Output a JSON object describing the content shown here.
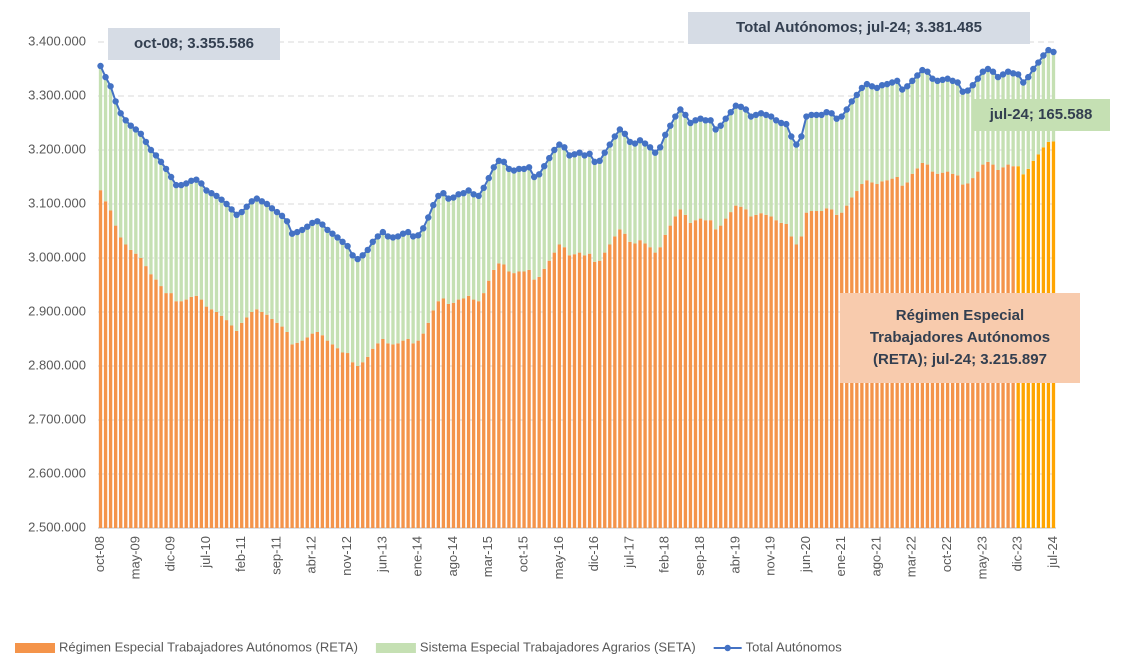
{
  "chart_data": {
    "type": "combo",
    "categories": [
      "oct-08",
      null,
      null,
      null,
      null,
      null,
      null,
      "may-09",
      null,
      null,
      null,
      null,
      null,
      null,
      "dic-09",
      null,
      null,
      null,
      null,
      null,
      null,
      "jul-10",
      null,
      null,
      null,
      null,
      null,
      null,
      "feb-11",
      null,
      null,
      null,
      null,
      null,
      null,
      "sep-11",
      null,
      null,
      null,
      null,
      null,
      null,
      "abr-12",
      null,
      null,
      null,
      null,
      null,
      null,
      "nov-12",
      null,
      null,
      null,
      null,
      null,
      null,
      "jun-13",
      null,
      null,
      null,
      null,
      null,
      null,
      "ene-14",
      null,
      null,
      null,
      null,
      null,
      null,
      "ago-14",
      null,
      null,
      null,
      null,
      null,
      null,
      "mar-15",
      null,
      null,
      null,
      null,
      null,
      null,
      "oct-15",
      null,
      null,
      null,
      null,
      null,
      null,
      "may-16",
      null,
      null,
      null,
      null,
      null,
      null,
      "dic-16",
      null,
      null,
      null,
      null,
      null,
      null,
      "jul-17",
      null,
      null,
      null,
      null,
      null,
      null,
      "feb-18",
      null,
      null,
      null,
      null,
      null,
      null,
      "sep-18",
      null,
      null,
      null,
      null,
      null,
      null,
      "abr-19",
      null,
      null,
      null,
      null,
      null,
      null,
      "nov-19",
      null,
      null,
      null,
      null,
      null,
      null,
      "jun-20",
      null,
      null,
      null,
      null,
      null,
      null,
      "ene-21",
      null,
      null,
      null,
      null,
      null,
      null,
      "ago-21",
      null,
      null,
      null,
      null,
      null,
      null,
      "mar-22",
      null,
      null,
      null,
      null,
      null,
      null,
      "oct-22",
      null,
      null,
      null,
      null,
      null,
      null,
      "may-23",
      null,
      null,
      null,
      null,
      null,
      null,
      "dic-23",
      null,
      null,
      null,
      null,
      null,
      null,
      "jul-24"
    ],
    "highlight_from": "dic-23",
    "series": [
      {
        "name": "Régimen Especial Trabajadores Autónomos (RETA)",
        "type": "bar",
        "color": "#f4944a",
        "highlight_color": "#ffa500",
        "values": [
          3125586,
          3105000,
          3088000,
          3060000,
          3038000,
          3025000,
          3015000,
          3008000,
          3000000,
          2985000,
          2970000,
          2960000,
          2948000,
          2935000,
          2935000,
          2920000,
          2920000,
          2923000,
          2928000,
          2930000,
          2923000,
          2910000,
          2905000,
          2900000,
          2893000,
          2885000,
          2875000,
          2865000,
          2880000,
          2890000,
          2900000,
          2905000,
          2900000,
          2895000,
          2887000,
          2880000,
          2873000,
          2863000,
          2840000,
          2843000,
          2847000,
          2853000,
          2860000,
          2863000,
          2857000,
          2847000,
          2840000,
          2833000,
          2825000,
          2824000,
          2807000,
          2800000,
          2807000,
          2817000,
          2832000,
          2842000,
          2850000,
          2842000,
          2840000,
          2842000,
          2847000,
          2850000,
          2842000,
          2847000,
          2860000,
          2880000,
          2903000,
          2920000,
          2925000,
          2915000,
          2917000,
          2923000,
          2925000,
          2930000,
          2923000,
          2920000,
          2935000,
          2958000,
          2978000,
          2990000,
          2988000,
          2975000,
          2972000,
          2975000,
          2975000,
          2978000,
          2960000,
          2965000,
          2980000,
          2995000,
          3010000,
          3025000,
          3020000,
          3005000,
          3007000,
          3010000,
          3005000,
          3008000,
          2993000,
          2995000,
          3010000,
          3025000,
          3040000,
          3053000,
          3045000,
          3030000,
          3027000,
          3033000,
          3027000,
          3020000,
          3010000,
          3020000,
          3043000,
          3060000,
          3077000,
          3090000,
          3080000,
          3065000,
          3070000,
          3073000,
          3070000,
          3070000,
          3053000,
          3060000,
          3073000,
          3085000,
          3097000,
          3095000,
          3090000,
          3077000,
          3080000,
          3083000,
          3080000,
          3077000,
          3070000,
          3065000,
          3063000,
          3040000,
          3025000,
          3040000,
          3084000,
          3087000,
          3087000,
          3087000,
          3092000,
          3090000,
          3080000,
          3084000,
          3097000,
          3112000,
          3124000,
          3137000,
          3144000,
          3140000,
          3137000,
          3142000,
          3144000,
          3147000,
          3150000,
          3134000,
          3140000,
          3156000,
          3166000,
          3176000,
          3173000,
          3160000,
          3156000,
          3158000,
          3160000,
          3156000,
          3153000,
          3136000,
          3138000,
          3148000,
          3160000,
          3173000,
          3178000,
          3173000,
          3163000,
          3168000,
          3173000,
          3170000,
          3170000,
          3155000,
          3165000,
          3180000,
          3192000,
          3205000,
          3215000,
          3215897
        ],
        "value_labels": {
          "189": "Régimen Especial Trabajadores Autónomos (RETA); jul-24; 3.215.897"
        }
      },
      {
        "name": "Sistema Especial Trabajadores Agrarios (SETA)",
        "type": "bar",
        "color": "#c5e0b3",
        "values": [
          230000,
          230000,
          230000,
          230000,
          230000,
          230000,
          230000,
          230000,
          230000,
          230000,
          230000,
          230000,
          230000,
          230000,
          215000,
          215000,
          215000,
          215000,
          215000,
          215000,
          215000,
          215000,
          215000,
          215000,
          215000,
          215000,
          215000,
          215000,
          205000,
          205000,
          205000,
          205000,
          205000,
          205000,
          205000,
          205000,
          205000,
          205000,
          205000,
          205000,
          205000,
          205000,
          205000,
          205000,
          205000,
          205000,
          205000,
          205000,
          205000,
          198000,
          198000,
          198000,
          198000,
          198000,
          198000,
          198000,
          198000,
          198000,
          198000,
          198000,
          198000,
          198000,
          198000,
          195000,
          195000,
          195000,
          195000,
          195000,
          195000,
          195000,
          195000,
          195000,
          195000,
          195000,
          195000,
          195000,
          195000,
          190000,
          190000,
          190000,
          190000,
          190000,
          190000,
          190000,
          190000,
          190000,
          190000,
          190000,
          190000,
          190000,
          190000,
          185000,
          185000,
          185000,
          185000,
          185000,
          185000,
          185000,
          185000,
          185000,
          185000,
          185000,
          185000,
          185000,
          185000,
          185000,
          185000,
          185000,
          185000,
          185000,
          185000,
          185000,
          185000,
          185000,
          185000,
          185000,
          185000,
          185000,
          185000,
          185000,
          185000,
          185000,
          185000,
          185000,
          185000,
          185000,
          185000,
          185000,
          185000,
          185000,
          185000,
          185000,
          185000,
          185000,
          185000,
          185000,
          185000,
          185000,
          185000,
          185000,
          178000,
          178000,
          178000,
          178000,
          178000,
          178000,
          178000,
          178000,
          178000,
          178000,
          178000,
          178000,
          178000,
          178000,
          178000,
          178000,
          178000,
          178000,
          178000,
          178000,
          178000,
          172000,
          172000,
          172000,
          172000,
          172000,
          172000,
          172000,
          172000,
          172000,
          172000,
          172000,
          172000,
          172000,
          172000,
          172000,
          172000,
          172000,
          172000,
          172000,
          172000,
          172000,
          170000,
          170000,
          170000,
          170000,
          170000,
          170000,
          170000,
          165588
        ],
        "value_labels": {
          "189": "jul-24; 165.588"
        }
      },
      {
        "name": "Total Autónomos",
        "type": "line",
        "color": "#4472c4",
        "values": [
          3355586,
          3335000,
          3318000,
          3290000,
          3268000,
          3255000,
          3245000,
          3238000,
          3230000,
          3215000,
          3200000,
          3190000,
          3178000,
          3165000,
          3150000,
          3135000,
          3135000,
          3138000,
          3143000,
          3145000,
          3138000,
          3125000,
          3120000,
          3115000,
          3108000,
          3100000,
          3090000,
          3080000,
          3085000,
          3095000,
          3105000,
          3110000,
          3105000,
          3100000,
          3092000,
          3085000,
          3078000,
          3068000,
          3045000,
          3048000,
          3052000,
          3058000,
          3065000,
          3068000,
          3062000,
          3052000,
          3045000,
          3038000,
          3030000,
          3022000,
          3005000,
          2998000,
          3005000,
          3015000,
          3030000,
          3040000,
          3048000,
          3040000,
          3038000,
          3040000,
          3045000,
          3048000,
          3040000,
          3042000,
          3055000,
          3075000,
          3098000,
          3115000,
          3120000,
          3110000,
          3112000,
          3118000,
          3120000,
          3125000,
          3118000,
          3115000,
          3130000,
          3148000,
          3168000,
          3180000,
          3178000,
          3165000,
          3162000,
          3165000,
          3165000,
          3168000,
          3150000,
          3155000,
          3170000,
          3185000,
          3200000,
          3210000,
          3205000,
          3190000,
          3192000,
          3195000,
          3190000,
          3193000,
          3178000,
          3180000,
          3195000,
          3210000,
          3225000,
          3238000,
          3230000,
          3215000,
          3212000,
          3218000,
          3212000,
          3205000,
          3195000,
          3205000,
          3228000,
          3245000,
          3262000,
          3275000,
          3265000,
          3250000,
          3255000,
          3258000,
          3255000,
          3255000,
          3238000,
          3245000,
          3258000,
          3270000,
          3282000,
          3280000,
          3275000,
          3262000,
          3265000,
          3268000,
          3265000,
          3262000,
          3255000,
          3250000,
          3248000,
          3225000,
          3210000,
          3225000,
          3262000,
          3265000,
          3265000,
          3265000,
          3270000,
          3268000,
          3258000,
          3262000,
          3275000,
          3290000,
          3302000,
          3315000,
          3322000,
          3318000,
          3315000,
          3320000,
          3322000,
          3325000,
          3328000,
          3312000,
          3318000,
          3328000,
          3338000,
          3348000,
          3345000,
          3332000,
          3328000,
          3330000,
          3332000,
          3328000,
          3325000,
          3308000,
          3310000,
          3320000,
          3332000,
          3345000,
          3350000,
          3345000,
          3335000,
          3340000,
          3345000,
          3342000,
          3340000,
          3325000,
          3335000,
          3350000,
          3362000,
          3375000,
          3385000,
          3381485
        ],
        "value_labels": {
          "0": "oct-08; 3.355.586",
          "189": "Total Autónomos; jul-24; 3.381.485"
        }
      }
    ],
    "ylim": [
      2500000,
      3400000
    ],
    "yticks": [
      {
        "value": 2500000,
        "label": "2.500.000"
      },
      {
        "value": 2600000,
        "label": "2.600.000"
      },
      {
        "value": 2700000,
        "label": "2.700.000"
      },
      {
        "value": 2800000,
        "label": "2.800.000"
      },
      {
        "value": 2900000,
        "label": "2.900.000"
      },
      {
        "value": 3000000,
        "label": "3.000.000"
      },
      {
        "value": 3100000,
        "label": "3.100.000"
      },
      {
        "value": 3200000,
        "label": "3.200.000"
      },
      {
        "value": 3300000,
        "label": "3.300.000"
      },
      {
        "value": 3400000,
        "label": "3.400.000"
      }
    ],
    "grid": true,
    "legend": "bottom"
  }
}
